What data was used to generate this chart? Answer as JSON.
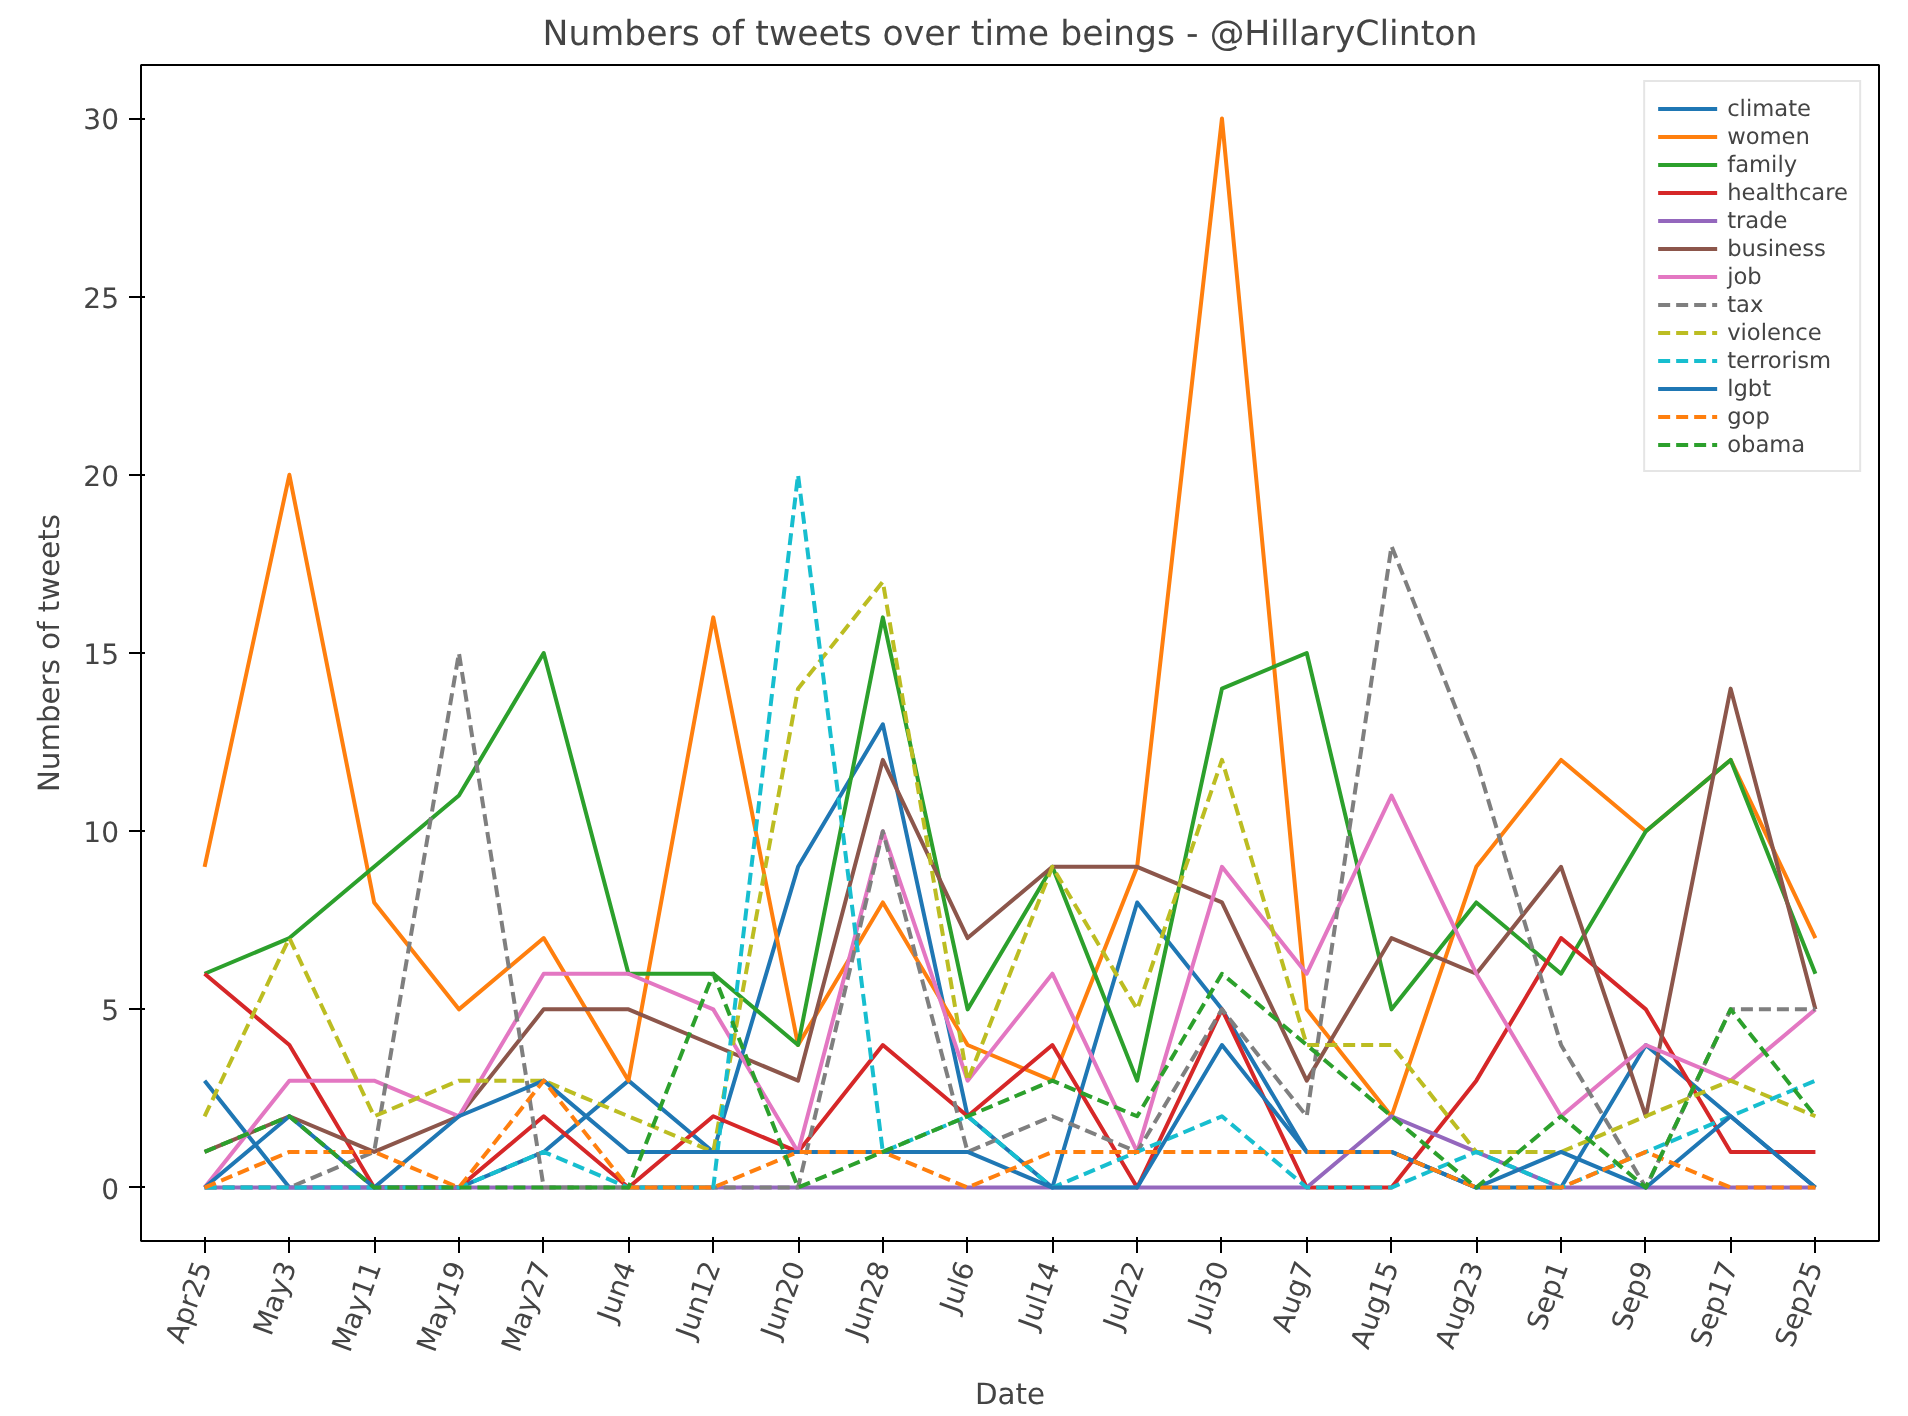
{
  "chart_data": {
    "type": "line",
    "title": "Numbers of tweets over time beings - @HillaryClinton",
    "xlabel": "Date",
    "ylabel": "Numbers of tweets",
    "categories": [
      "Apr25",
      "May3",
      "May11",
      "May19",
      "May27",
      "Jun4",
      "Jun12",
      "Jun20",
      "Jun28",
      "Jul6",
      "Jul14",
      "Jul22",
      "Jul30",
      "Aug7",
      "Aug15",
      "Aug23",
      "Sep1",
      "Sep9",
      "Sep17",
      "Sep25"
    ],
    "ylim": [
      -1.5,
      31.5
    ],
    "yticks": [
      0,
      5,
      10,
      15,
      20,
      25,
      30
    ],
    "grid": false,
    "legend": "top right",
    "marker": "none",
    "series": [
      {
        "name": "climate",
        "color": "#1f77b4",
        "line_style": "solid",
        "values": [
          3,
          0,
          0,
          0,
          1,
          3,
          1,
          9,
          13,
          2,
          0,
          8,
          5,
          1,
          1,
          0,
          0,
          4,
          2,
          0
        ]
      },
      {
        "name": "women",
        "color": "#ff7f0e",
        "line_style": "solid",
        "values": [
          9,
          20,
          8,
          5,
          7,
          3,
          16,
          4,
          8,
          4,
          3,
          9,
          30,
          5,
          2,
          9,
          12,
          10,
          12,
          7
        ]
      },
      {
        "name": "family",
        "color": "#2ca02c",
        "line_style": "solid",
        "values": [
          6,
          7,
          9,
          11,
          15,
          6,
          6,
          4,
          16,
          5,
          9,
          3,
          14,
          15,
          5,
          8,
          6,
          10,
          12,
          6
        ]
      },
      {
        "name": "healthcare",
        "color": "#d62728",
        "line_style": "solid",
        "values": [
          6,
          4,
          0,
          0,
          2,
          0,
          2,
          1,
          4,
          2,
          4,
          0,
          5,
          0,
          0,
          3,
          7,
          5,
          1,
          1
        ]
      },
      {
        "name": "trade",
        "color": "#9467bd",
        "line_style": "solid",
        "values": [
          0,
          0,
          0,
          0,
          0,
          0,
          0,
          0,
          0,
          0,
          0,
          0,
          0,
          0,
          2,
          1,
          0,
          0,
          0,
          0
        ]
      },
      {
        "name": "business",
        "color": "#8c564b",
        "line_style": "solid",
        "values": [
          1,
          2,
          1,
          2,
          5,
          5,
          4,
          3,
          12,
          7,
          9,
          9,
          8,
          3,
          7,
          6,
          9,
          2,
          14,
          5
        ]
      },
      {
        "name": "job",
        "color": "#e377c2",
        "line_style": "solid",
        "values": [
          0,
          3,
          3,
          2,
          6,
          6,
          5,
          1,
          10,
          3,
          6,
          1,
          9,
          6,
          11,
          6,
          2,
          4,
          3,
          5
        ]
      },
      {
        "name": "tax",
        "color": "#7f7f7f",
        "line_style": "dashed",
        "values": [
          0,
          0,
          1,
          15,
          0,
          0,
          0,
          0,
          10,
          1,
          2,
          1,
          5,
          2,
          18,
          12,
          4,
          0,
          5,
          5
        ]
      },
      {
        "name": "violence",
        "color": "#bcbd22",
        "line_style": "dashed",
        "values": [
          2,
          7,
          2,
          3,
          3,
          2,
          1,
          14,
          17,
          3,
          9,
          5,
          12,
          4,
          4,
          1,
          1,
          2,
          3,
          2
        ]
      },
      {
        "name": "terrorism",
        "color": "#17becf",
        "line_style": "dashed",
        "values": [
          0,
          0,
          0,
          0,
          1,
          0,
          0,
          20,
          1,
          2,
          0,
          1,
          2,
          0,
          0,
          1,
          0,
          1,
          2,
          3
        ]
      },
      {
        "name": "lgbt",
        "color": "#1f77b4",
        "line_style": "solid",
        "values": [
          0,
          2,
          0,
          2,
          3,
          1,
          1,
          1,
          1,
          1,
          0,
          0,
          4,
          1,
          1,
          0,
          1,
          0,
          2,
          0
        ]
      },
      {
        "name": "gop",
        "color": "#ff7f0e",
        "line_style": "dashed",
        "values": [
          0,
          1,
          1,
          0,
          3,
          0,
          0,
          1,
          1,
          0,
          1,
          1,
          1,
          1,
          1,
          0,
          0,
          1,
          0,
          0
        ]
      },
      {
        "name": "obama",
        "color": "#2ca02c",
        "line_style": "dashed",
        "values": [
          1,
          2,
          0,
          0,
          0,
          0,
          6,
          0,
          1,
          2,
          3,
          2,
          6,
          4,
          2,
          0,
          2,
          0,
          5,
          2
        ]
      }
    ]
  }
}
